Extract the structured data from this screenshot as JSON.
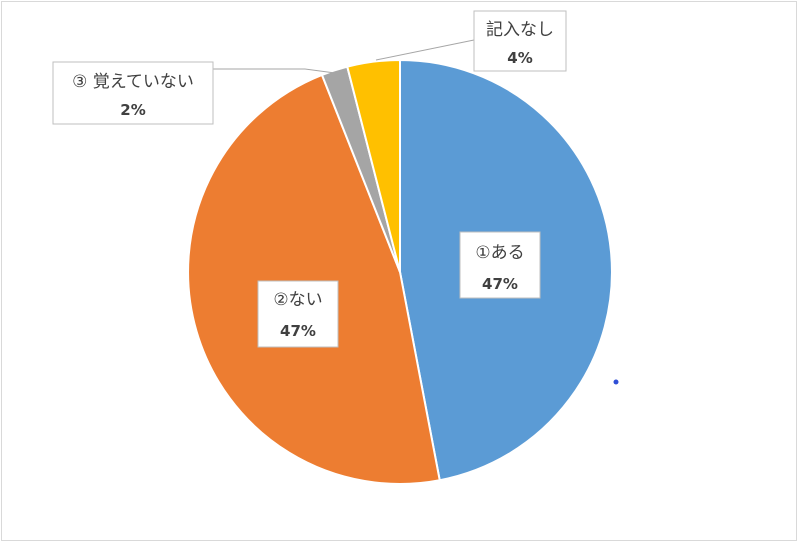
{
  "chart_data": {
    "type": "pie",
    "title": "",
    "start_angle_deg": 0,
    "direction": "clockwise",
    "slices": [
      {
        "label": "①ある",
        "value": 47,
        "display": "47%",
        "color": "#5b9bd5"
      },
      {
        "label": "②ない",
        "value": 47,
        "display": "47%",
        "color": "#ed7d31"
      },
      {
        "label": "③ 覚えていない",
        "value": 2,
        "display": "2%",
        "color": "#a5a5a5"
      },
      {
        "label": "記入なし",
        "value": 4,
        "display": "4%",
        "color": "#ffc000"
      }
    ],
    "legend": "none",
    "data_labels": "name-and-percent"
  }
}
